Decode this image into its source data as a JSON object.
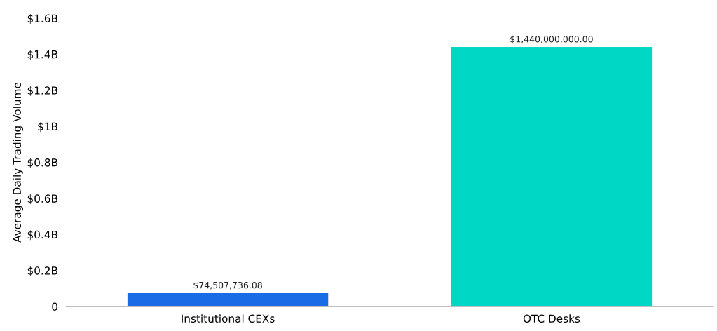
{
  "chart_data": {
    "type": "bar",
    "ylabel": "Average Daily Trading Volume",
    "categories": [
      "Institutional CEXs",
      "OTC Desks"
    ],
    "values": [
      74507736.08,
      1440000000
    ],
    "colors": [
      "#1a6be6",
      "#00d7c5"
    ],
    "value_labels": [
      "$74,507,736.08",
      "$1,440,000,000.00"
    ],
    "ylim": [
      0,
      1600000000
    ],
    "yticks": [
      {
        "value": 0,
        "label": "0"
      },
      {
        "value": 200000000,
        "label": "$0.2B"
      },
      {
        "value": 400000000,
        "label": "$0.4B"
      },
      {
        "value": 600000000,
        "label": "$0.6B"
      },
      {
        "value": 800000000,
        "label": "$0.8B"
      },
      {
        "value": 1000000000,
        "label": "$1B"
      },
      {
        "value": 1200000000,
        "label": "$1.2B"
      },
      {
        "value": 1400000000,
        "label": "$1.4B"
      },
      {
        "value": 1600000000,
        "label": "$1.6B"
      }
    ],
    "grid": false,
    "legend": false
  }
}
